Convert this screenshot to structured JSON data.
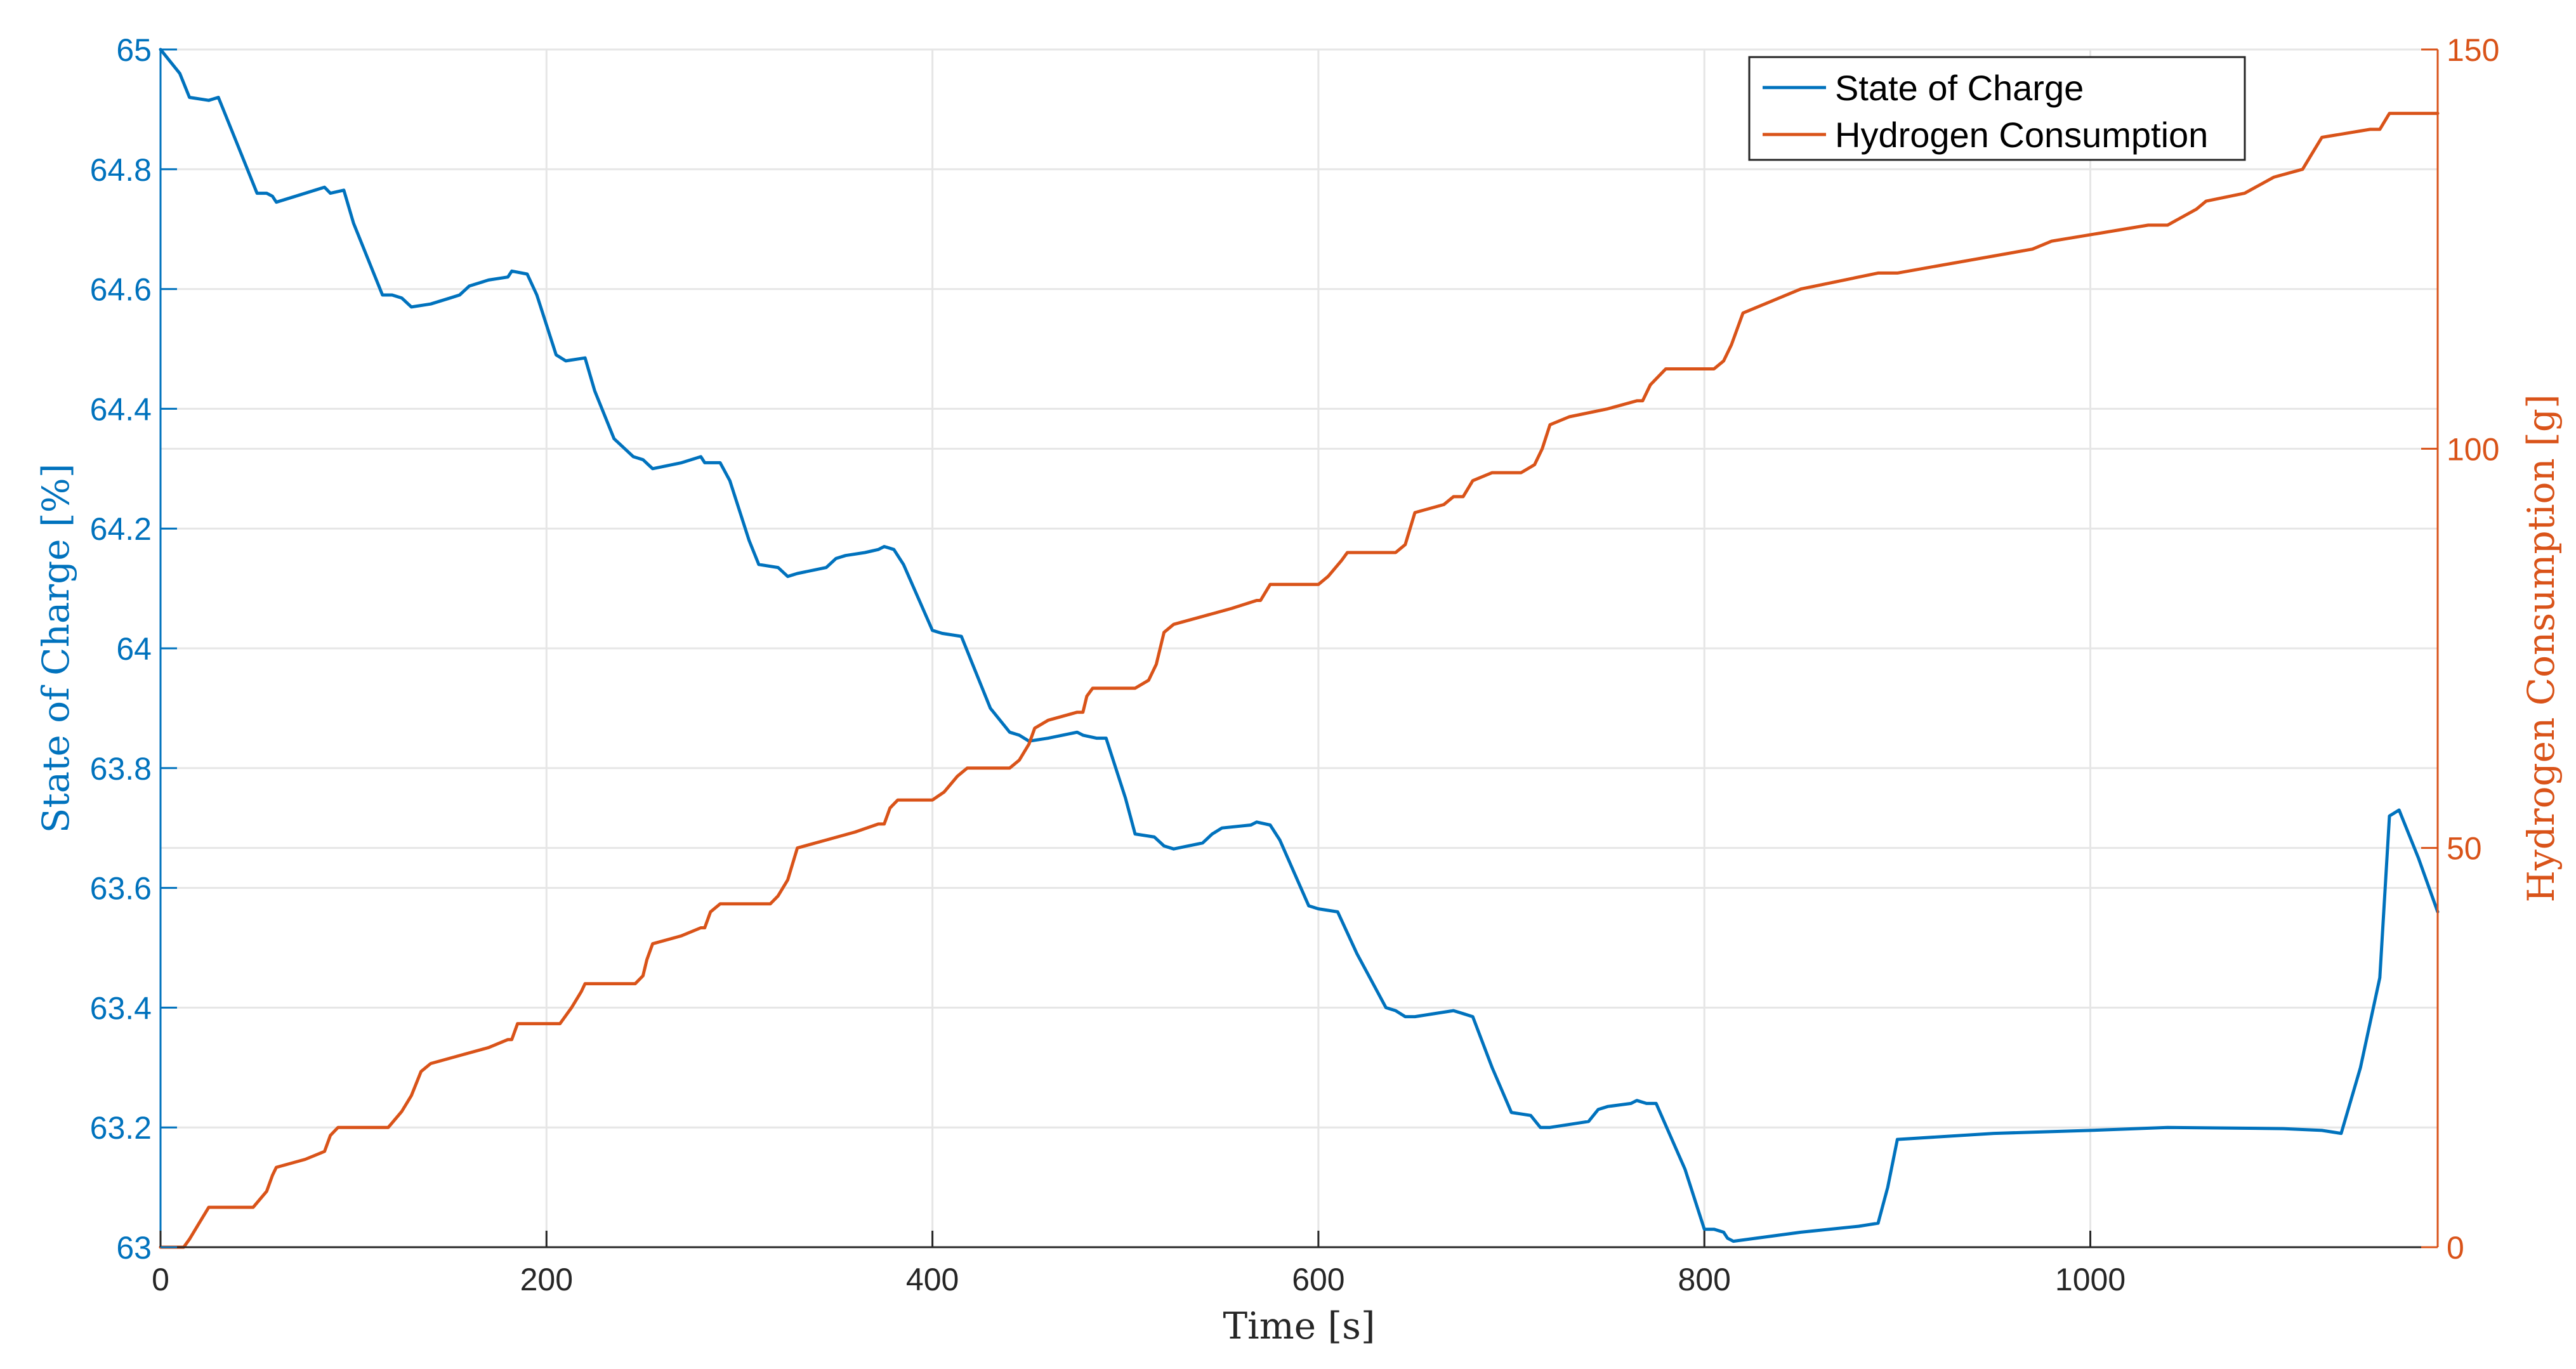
{
  "chart_data": {
    "type": "line",
    "title": "",
    "xlabel": "Time [s]",
    "ylabel_left": "State of Charge [%]",
    "ylabel_right": "Hydrogen Consumption [g]",
    "xlim": [
      0,
      1180
    ],
    "ylim_left": [
      63,
      65
    ],
    "ylim_right": [
      0,
      150
    ],
    "grid": true,
    "legend_position": "top-right",
    "x_ticks": [
      0,
      200,
      400,
      600,
      800,
      1000
    ],
    "x_tick_labels": [
      "0",
      "200",
      "400",
      "600",
      "800",
      "1000"
    ],
    "y_left_ticks": [
      63,
      63.2,
      63.4,
      63.6,
      63.8,
      64,
      64.2,
      64.4,
      64.6,
      64.8,
      65
    ],
    "y_left_tick_labels": [
      "63",
      "63.2",
      "63.4",
      "63.6",
      "63.8",
      "64",
      "64.2",
      "64.4",
      "64.6",
      "64.8",
      "65"
    ],
    "y_right_ticks": [
      0,
      50,
      100,
      150
    ],
    "y_right_tick_labels": [
      "0",
      "50",
      "100",
      "150"
    ],
    "colors": {
      "soc": "#0072BD",
      "hydrogen": "#D95319",
      "grid": "#e6e6e6",
      "axis": "#262626"
    },
    "series": [
      {
        "name": "State of Charge",
        "axis": "left",
        "x": [
          0,
          10,
          15,
          25,
          30,
          40,
          50,
          55,
          58,
          60,
          70,
          85,
          88,
          95,
          100,
          110,
          115,
          120,
          125,
          130,
          140,
          150,
          155,
          160,
          170,
          180,
          182,
          190,
          195,
          205,
          210,
          220,
          225,
          235,
          245,
          250,
          255,
          270,
          280,
          282,
          290,
          295,
          305,
          310,
          320,
          325,
          330,
          345,
          350,
          355,
          365,
          372,
          375,
          380,
          385,
          400,
          405,
          415,
          420,
          430,
          440,
          445,
          450,
          460,
          475,
          478,
          485,
          490,
          500,
          505,
          515,
          520,
          525,
          540,
          545,
          550,
          565,
          568,
          575,
          580,
          595,
          600,
          610,
          620,
          635,
          640,
          645,
          650,
          670,
          675,
          680,
          690,
          700,
          710,
          715,
          720,
          740,
          745,
          750,
          762,
          765,
          770,
          775,
          790,
          800,
          805,
          810,
          812,
          815,
          850,
          880,
          890,
          895,
          900,
          950,
          1000,
          1040,
          1100,
          1120,
          1130,
          1140,
          1150,
          1155,
          1160,
          1170,
          1180
        ],
        "values": [
          65.0,
          64.96,
          64.92,
          64.915,
          64.92,
          64.84,
          64.76,
          64.76,
          64.755,
          64.745,
          64.755,
          64.77,
          64.76,
          64.765,
          64.71,
          64.63,
          64.59,
          64.59,
          64.585,
          64.57,
          64.575,
          64.585,
          64.59,
          64.605,
          64.615,
          64.62,
          64.63,
          64.625,
          64.59,
          64.49,
          64.48,
          64.485,
          64.43,
          64.35,
          64.32,
          64.315,
          64.3,
          64.31,
          64.32,
          64.31,
          64.31,
          64.28,
          64.18,
          64.14,
          64.135,
          64.12,
          64.125,
          64.135,
          64.15,
          64.155,
          64.16,
          64.165,
          64.17,
          64.165,
          64.14,
          64.03,
          64.025,
          64.02,
          63.98,
          63.9,
          63.86,
          63.855,
          63.845,
          63.85,
          63.86,
          63.855,
          63.85,
          63.85,
          63.75,
          63.69,
          63.685,
          63.67,
          63.665,
          63.675,
          63.69,
          63.7,
          63.705,
          63.71,
          63.705,
          63.68,
          63.57,
          63.565,
          63.56,
          63.49,
          63.4,
          63.395,
          63.385,
          63.385,
          63.395,
          63.39,
          63.385,
          63.3,
          63.225,
          63.22,
          63.2,
          63.2,
          63.21,
          63.23,
          63.235,
          63.24,
          63.245,
          63.24,
          63.24,
          63.13,
          63.03,
          63.03,
          63.025,
          63.015,
          63.01,
          63.025,
          63.035,
          63.04,
          63.1,
          63.18,
          63.19,
          63.195,
          63.2,
          63.198,
          63.195,
          63.19,
          63.3,
          63.45,
          63.72,
          63.73,
          63.65,
          63.56
        ]
      },
      {
        "name": "Hydrogen Consumption",
        "axis": "right",
        "x": [
          0,
          12,
          15,
          20,
          25,
          30,
          48,
          55,
          58,
          60,
          75,
          85,
          88,
          92,
          100,
          118,
          125,
          130,
          135,
          140,
          155,
          170,
          180,
          182,
          185,
          190,
          200,
          207,
          213,
          218,
          220,
          240,
          246,
          250,
          252,
          255,
          270,
          280,
          282,
          285,
          290,
          310,
          316,
          320,
          325,
          330,
          345,
          360,
          372,
          375,
          378,
          382,
          385,
          400,
          406,
          413,
          418,
          420,
          440,
          445,
          450,
          453,
          460,
          475,
          478,
          480,
          483,
          490,
          505,
          512,
          516,
          520,
          525,
          540,
          555,
          568,
          570,
          575,
          590,
          600,
          605,
          612,
          615,
          620,
          640,
          645,
          650,
          665,
          670,
          675,
          680,
          690,
          705,
          712,
          716,
          720,
          730,
          750,
          765,
          768,
          772,
          780,
          800,
          805,
          810,
          814,
          820,
          830,
          850,
          890,
          900,
          970,
          980,
          1030,
          1040,
          1055,
          1060,
          1080,
          1095,
          1110,
          1115,
          1120,
          1145,
          1150,
          1155,
          1180
        ],
        "values": [
          0,
          0,
          1,
          3,
          5,
          5,
          5,
          7,
          9,
          10,
          11,
          12,
          14,
          15,
          15,
          15,
          17,
          19,
          22,
          23,
          24,
          25,
          26,
          26,
          28,
          28,
          28,
          28,
          30,
          32,
          33,
          33,
          33,
          34,
          36,
          38,
          39,
          40,
          40,
          42,
          43,
          43,
          43,
          44,
          46,
          50,
          51,
          52,
          53,
          53,
          55,
          56,
          56,
          56,
          57,
          59,
          60,
          60,
          60,
          61,
          63,
          65,
          66,
          67,
          67,
          69,
          70,
          70,
          70,
          71,
          73,
          77,
          78,
          79,
          80,
          81,
          81,
          83,
          83,
          83,
          84,
          86,
          87,
          87,
          87,
          88,
          92,
          93,
          94,
          94,
          96,
          97,
          97,
          98,
          100,
          103,
          104,
          105,
          106,
          106,
          108,
          110,
          110,
          110,
          111,
          113,
          117,
          118,
          120,
          122,
          122,
          125,
          126,
          128,
          128,
          130,
          131,
          132,
          134,
          135,
          137,
          139,
          140,
          140,
          142,
          142
        ]
      }
    ],
    "legend_entries": [
      "State of Charge",
      "Hydrogen Consumption"
    ]
  }
}
